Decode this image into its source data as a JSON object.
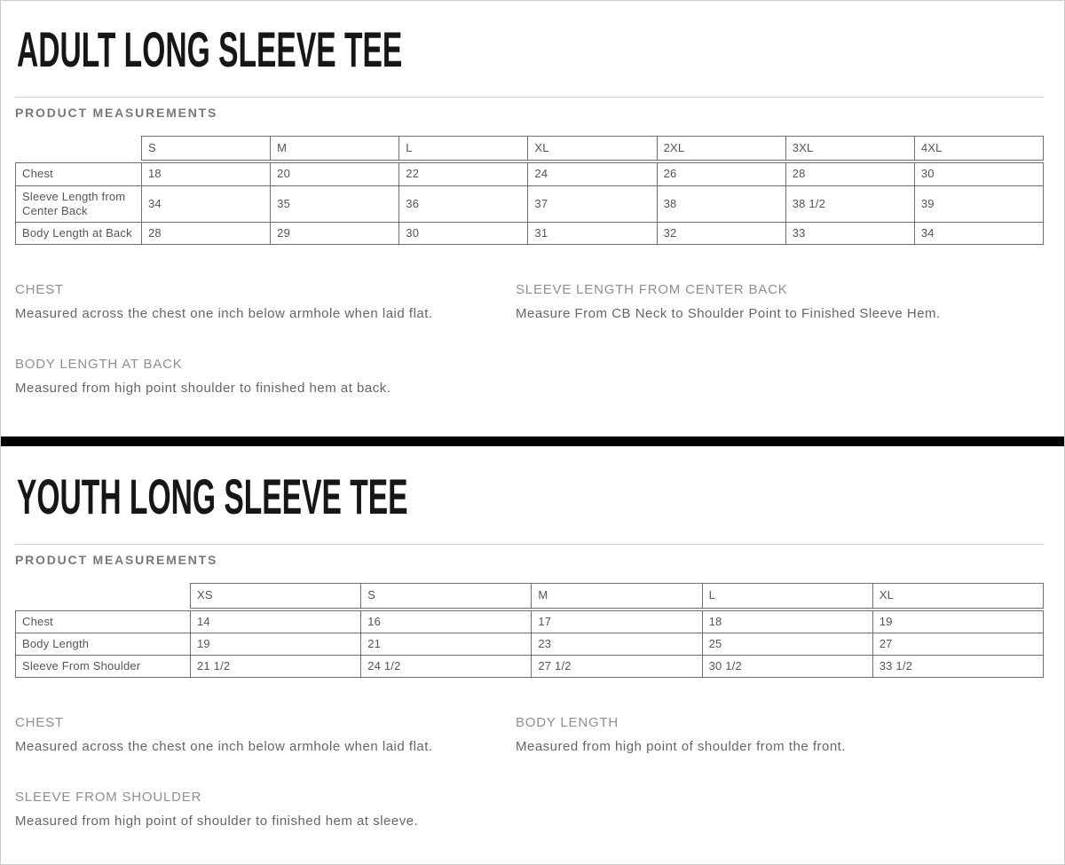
{
  "page": {
    "divider_color": "#000000",
    "rule_color": "#cfcfcf",
    "heading_gray": "#8f8f8f",
    "text_gray": "#666666"
  },
  "sections": [
    {
      "title": "ADULT LONG SLEEVE TEE",
      "subtitle": "PRODUCT MEASUREMENTS",
      "table": {
        "sizes": [
          "S",
          "M",
          "L",
          "XL",
          "2XL",
          "3XL",
          "4XL"
        ],
        "rows": [
          {
            "label": "Chest",
            "values": [
              "18",
              "20",
              "22",
              "24",
              "26",
              "28",
              "30"
            ]
          },
          {
            "label": "Sleeve Length from Center Back",
            "values": [
              "34",
              "35",
              "36",
              "37",
              "38",
              "38 1/2",
              "39"
            ]
          },
          {
            "label": "Body Length at Back",
            "values": [
              "28",
              "29",
              "30",
              "31",
              "32",
              "33",
              "34"
            ]
          }
        ]
      },
      "notes": [
        {
          "heading": "CHEST",
          "text": "Measured across the chest one inch below armhole when laid flat."
        },
        {
          "heading": "SLEEVE LENGTH FROM CENTER BACK",
          "text": "Measure From CB Neck to Shoulder Point to Finished Sleeve Hem."
        },
        {
          "heading": "BODY LENGTH AT BACK",
          "text": "Measured from high point shoulder to finished hem at back."
        }
      ]
    },
    {
      "title": "YOUTH LONG SLEEVE TEE",
      "subtitle": "PRODUCT MEASUREMENTS",
      "table": {
        "sizes": [
          "XS",
          "S",
          "M",
          "L",
          "XL"
        ],
        "rows": [
          {
            "label": "Chest",
            "values": [
              "14",
              "16",
              "17",
              "18",
              "19"
            ]
          },
          {
            "label": "Body Length",
            "values": [
              "19",
              "21",
              "23",
              "25",
              "27"
            ]
          },
          {
            "label": "Sleeve From Shoulder",
            "values": [
              "21 1/2",
              "24 1/2",
              "27 1/2",
              "30 1/2",
              "33 1/2"
            ]
          }
        ]
      },
      "notes": [
        {
          "heading": "CHEST",
          "text": "Measured across the chest one inch below armhole when laid flat."
        },
        {
          "heading": "BODY LENGTH",
          "text": "Measured from high point of shoulder from the front."
        },
        {
          "heading": "SLEEVE FROM SHOULDER",
          "text": "Measured from high point of shoulder to finished hem at sleeve."
        }
      ]
    }
  ]
}
